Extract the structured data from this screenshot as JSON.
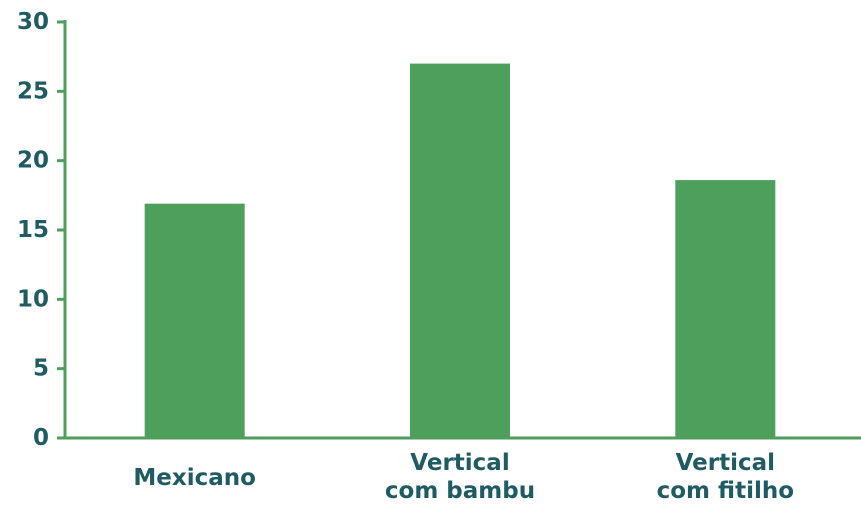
{
  "chart_data": {
    "type": "bar",
    "title": "",
    "xlabel": "",
    "ylabel": "",
    "categories": [
      [
        "Mexicano"
      ],
      [
        "Vertical",
        "com bambu"
      ],
      [
        "Vertical",
        "com fitilho"
      ]
    ],
    "values": [
      16.9,
      27.0,
      18.6
    ],
    "ylim": [
      0,
      30
    ],
    "yticks": [
      "0",
      "5",
      "10",
      "15",
      "20",
      "25",
      "30"
    ],
    "grid": false,
    "legend": "none",
    "colors": {
      "bar": "#4e9e5c",
      "axis": "#4e9e5c",
      "text": "#1f5b63"
    }
  }
}
